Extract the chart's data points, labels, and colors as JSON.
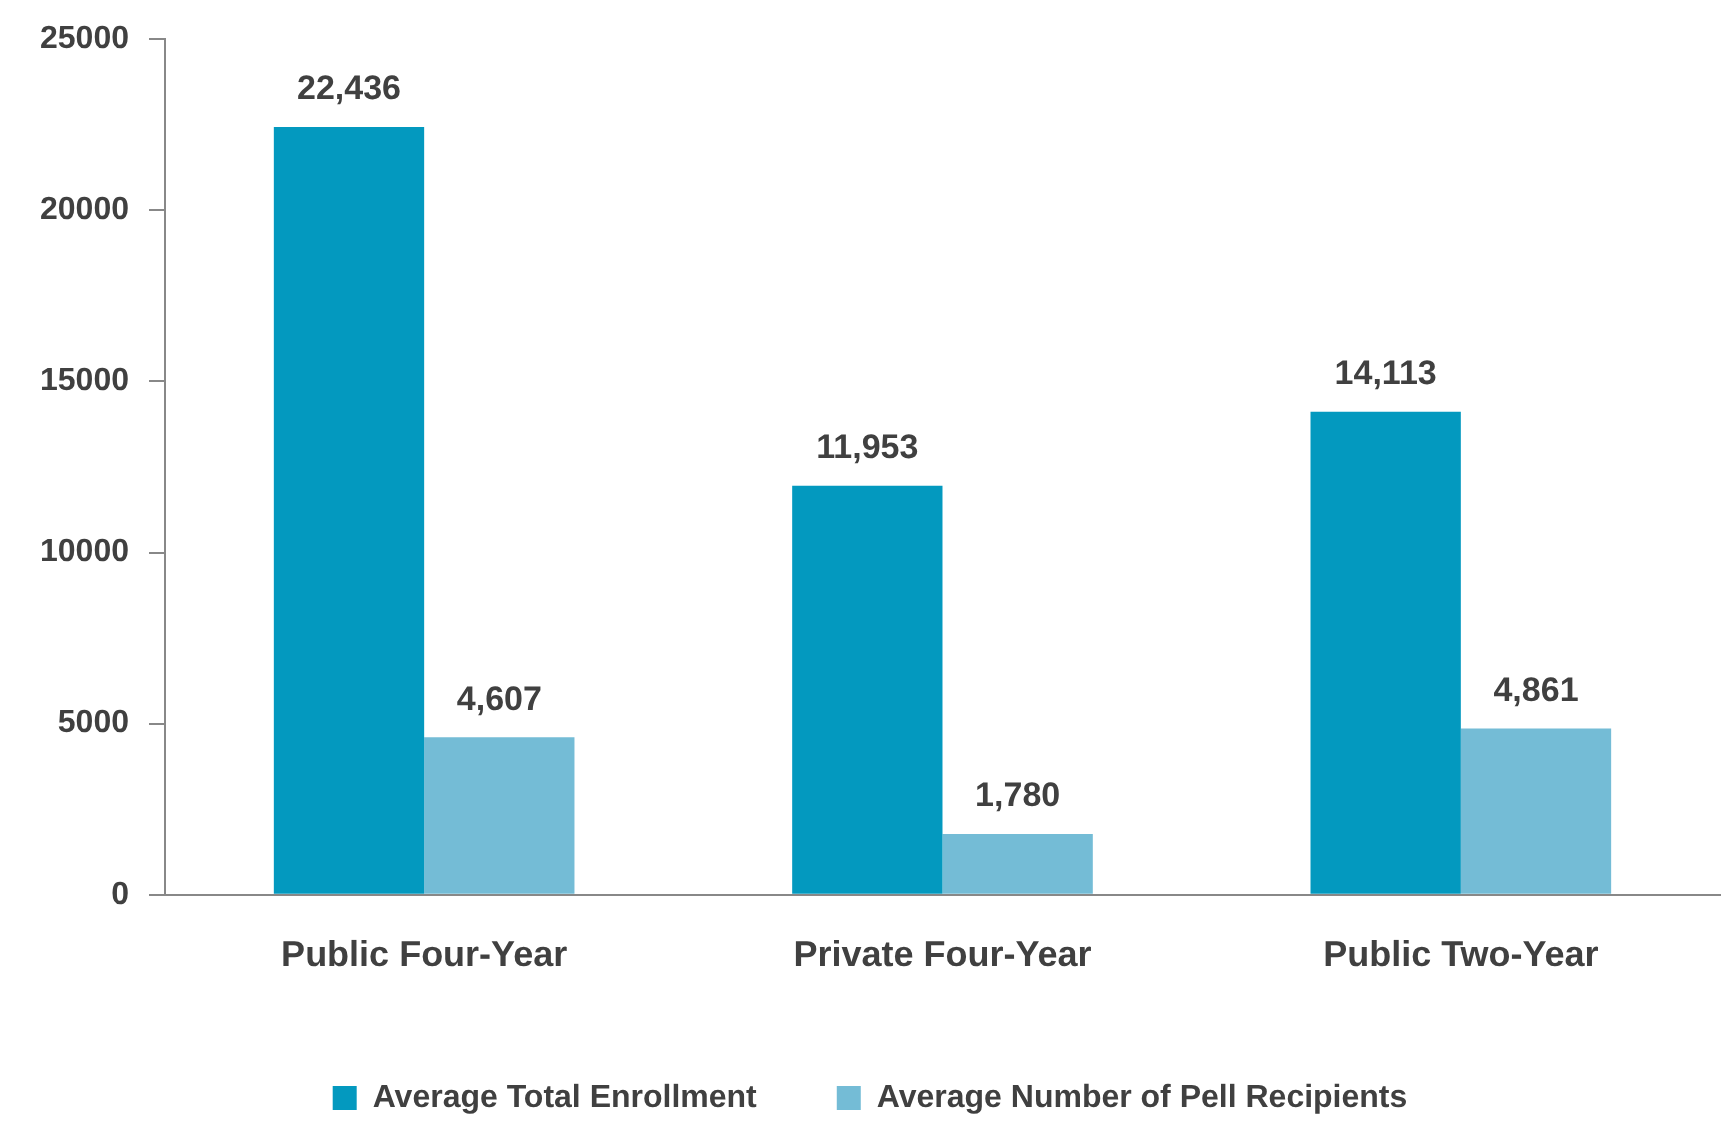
{
  "chart_data": {
    "type": "bar",
    "categories": [
      "Public Four-Year",
      "Private Four-Year",
      "Public Two-Year"
    ],
    "series": [
      {
        "name": "Average Total Enrollment",
        "color": "#0399bf",
        "values": [
          22436,
          11953,
          14113
        ],
        "value_labels": [
          "22,436",
          "11,953",
          "14,113"
        ]
      },
      {
        "name": "Average Number of Pell Recipients",
        "color": "#74bcd6",
        "values": [
          4607,
          1780,
          4861
        ],
        "value_labels": [
          "4,607",
          "1,780",
          "4,861"
        ]
      }
    ],
    "ylim": [
      0,
      25000
    ],
    "yticks": [
      0,
      5000,
      10000,
      15000,
      20000,
      25000
    ],
    "grid": false,
    "legend": "bottom"
  }
}
